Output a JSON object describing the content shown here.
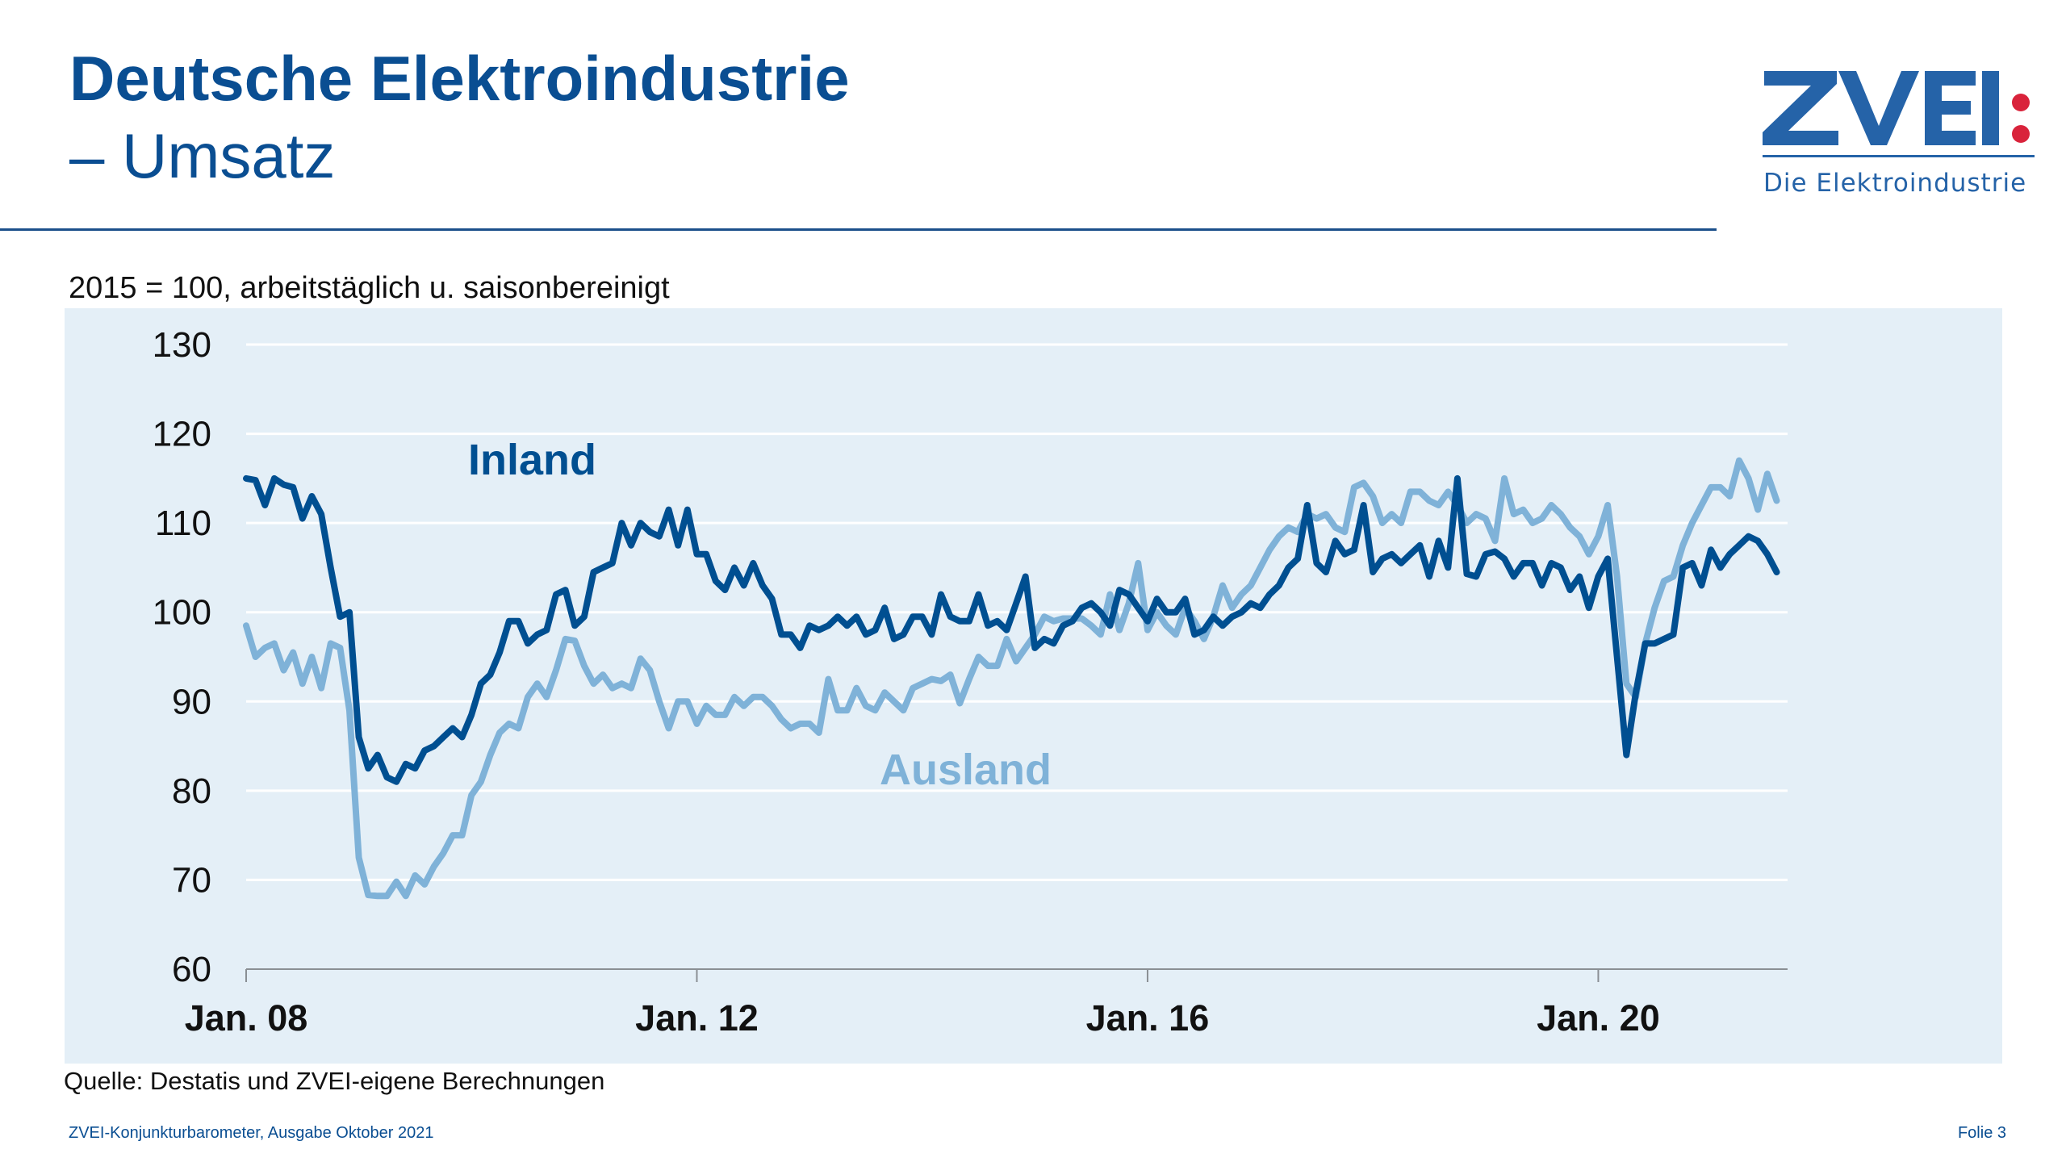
{
  "header": {
    "title": "Deutsche Elektroindustrie",
    "subtitle": "– Umsatz"
  },
  "logo": {
    "wordmark": "ZVEI",
    "tagline": "Die Elektroindustrie",
    "colors": {
      "blue": "#2563a8",
      "red": "#d9233b"
    }
  },
  "note": "2015 = 100, arbeitstäglich u. saisonbereinigt",
  "source": "Quelle: Destatis und ZVEI-eigene Berechnungen",
  "footer": {
    "left": "ZVEI-Konjunkturbarometer, Ausgabe Oktober 2021",
    "right": "Folie 3"
  },
  "chart_data": {
    "type": "line",
    "title": "",
    "xlabel": "",
    "ylabel": "",
    "ylim": [
      60,
      130
    ],
    "yticks": [
      "60",
      "70",
      "80",
      "90",
      "100",
      "110",
      "120",
      "130"
    ],
    "yticks_values": [
      60,
      70,
      80,
      90,
      100,
      110,
      120,
      130
    ],
    "x_start": "Jan. 2008",
    "x_frequency": "monthly",
    "xticks": [
      {
        "label": "Jan. 08",
        "month_index": 0
      },
      {
        "label": "Jan. 12",
        "month_index": 48
      },
      {
        "label": "Jan. 16",
        "month_index": 96
      },
      {
        "label": "Jan. 20",
        "month_index": 144
      }
    ],
    "grid": true,
    "legend": "inline labels",
    "series": [
      {
        "name": "Inland",
        "color": "#004f91",
        "values": [
          115,
          114.8,
          112,
          115,
          114.3,
          114,
          110.5,
          113,
          111,
          105,
          99.5,
          100,
          86,
          82.5,
          84,
          81.5,
          81,
          83,
          82.5,
          84.5,
          85,
          86,
          87,
          86,
          88.5,
          92,
          93,
          95.5,
          99,
          99,
          96.5,
          97.5,
          98,
          102,
          102.5,
          98.5,
          99.5,
          104.5,
          105,
          105.5,
          110,
          107.5,
          110,
          109,
          108.5,
          111.5,
          107.5,
          111.5,
          106.5,
          106.5,
          103.5,
          102.5,
          105,
          103,
          105.5,
          103,
          101.5,
          97.5,
          97.5,
          96,
          98.5,
          98,
          98.5,
          99.5,
          98.5,
          99.5,
          97.5,
          98,
          100.5,
          97,
          97.5,
          99.5,
          99.5,
          97.5,
          102,
          99.5,
          99,
          99,
          102,
          98.5,
          99,
          98,
          101,
          104,
          96,
          97,
          96.5,
          98.5,
          99,
          100.5,
          101,
          100,
          98.5,
          102.5,
          102,
          100.5,
          99,
          101.5,
          100,
          100,
          101.5,
          97.5,
          98,
          99.5,
          98.5,
          99.5,
          100,
          101,
          100.5,
          102,
          103,
          105,
          106,
          112,
          105.5,
          104.5,
          108,
          106.5,
          107,
          112,
          104.5,
          106,
          106.5,
          105.5,
          106.5,
          107.5,
          104,
          108,
          105,
          115,
          104.3,
          104,
          106.5,
          106.8,
          106,
          104,
          105.5,
          105.5,
          103,
          105.5,
          105,
          102.5,
          104,
          100.5,
          104,
          106,
          95,
          84,
          91,
          96.5,
          96.5,
          97,
          97.5,
          105,
          105.5,
          103,
          107,
          105,
          106.5,
          107.5,
          108.5,
          108,
          106.5,
          104.5
        ]
      },
      {
        "name": "Ausland",
        "color": "#7fb2d8",
        "values": [
          98.5,
          95,
          96,
          96.5,
          93.5,
          95.5,
          92,
          95,
          91.5,
          96.5,
          96,
          89,
          72.5,
          68.3,
          68.2,
          68.2,
          69.8,
          68.2,
          70.5,
          69.5,
          71.5,
          73,
          75,
          75,
          79.5,
          81,
          84,
          86.5,
          87.5,
          87,
          90.5,
          92,
          90.5,
          93.5,
          97,
          96.8,
          94,
          92,
          93,
          91.5,
          92,
          91.5,
          94.8,
          93.5,
          90,
          87,
          90,
          90,
          87.5,
          89.5,
          88.5,
          88.5,
          90.5,
          89.5,
          90.5,
          90.5,
          89.5,
          88,
          87,
          87.5,
          87.5,
          86.5,
          92.5,
          89,
          89,
          91.5,
          89.5,
          89,
          91,
          90,
          89,
          91.5,
          92,
          92.5,
          92.3,
          93,
          89.8,
          92.5,
          95,
          94,
          94,
          97,
          94.5,
          96,
          97.5,
          99.5,
          99,
          99.3,
          99.3,
          99.3,
          98.5,
          97.5,
          102,
          98,
          101,
          105.5,
          98,
          100,
          98.5,
          97.5,
          100.5,
          99,
          97,
          99.5,
          103,
          100.5,
          102,
          103,
          105,
          107,
          108.5,
          109.5,
          109,
          111,
          110.5,
          111,
          109.5,
          109,
          114,
          114.5,
          113,
          110,
          111,
          110,
          113.5,
          113.5,
          112.5,
          112,
          113.5,
          112,
          110,
          111,
          110.5,
          108,
          115,
          111,
          111.5,
          110,
          110.5,
          112,
          111,
          109.5,
          108.5,
          106.5,
          108.5,
          112,
          104,
          92,
          90.5,
          96.5,
          100.5,
          103.5,
          104,
          107.5,
          110,
          112,
          114,
          114,
          113,
          117,
          115,
          111.5,
          115.5,
          112.5
        ]
      }
    ]
  }
}
